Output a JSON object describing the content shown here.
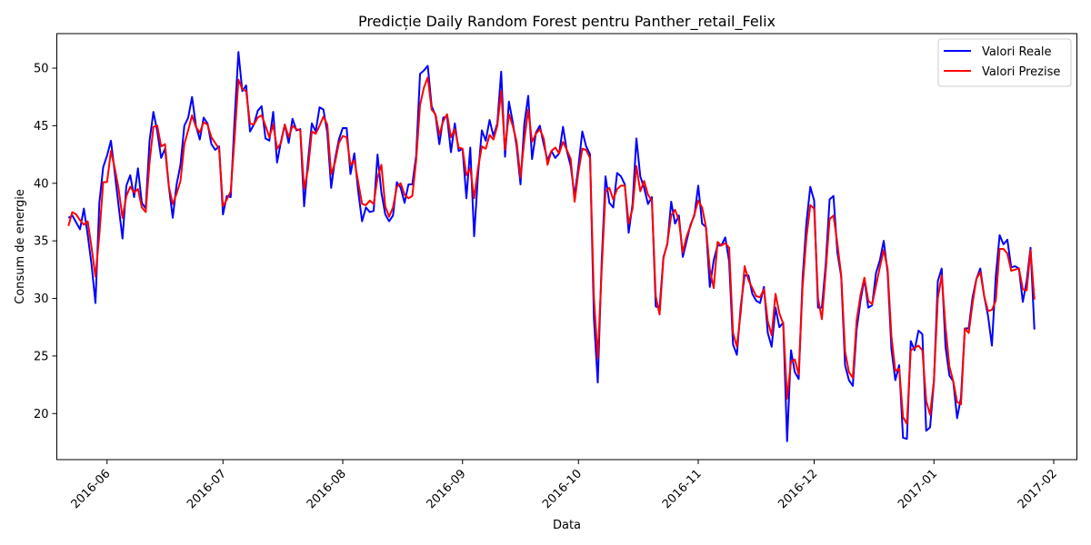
{
  "chart_data": {
    "type": "line",
    "title": "Predicție Daily Random Forest pentru Panther_retail_Felix",
    "xlabel": "Data",
    "ylabel": "Consum de energie",
    "xlim": [
      "2016-05-19",
      "2017-02-07"
    ],
    "ylim": [
      16,
      53
    ],
    "x_ticks": [
      "2016-06-01",
      "2016-07-01",
      "2016-08-01",
      "2016-09-01",
      "2016-10-01",
      "2016-11-01",
      "2016-12-01",
      "2017-01-01",
      "2017-02-01"
    ],
    "x_tick_labels": [
      "2016-06",
      "2016-07",
      "2016-08",
      "2016-09",
      "2016-10",
      "2016-11",
      "2016-12",
      "2017-01",
      "2017-02"
    ],
    "y_ticks": [
      20,
      25,
      30,
      35,
      40,
      45,
      50
    ],
    "grid": false,
    "legend_position": "top-right",
    "start_date": "2016-05-22",
    "series": [
      {
        "name": "Valori Reale",
        "color": "#0000ff",
        "values": [
          37.0,
          37.2,
          36.6,
          36.0,
          37.8,
          35.5,
          32.9,
          29.6,
          38.3,
          41.4,
          42.4,
          43.7,
          40.9,
          38.0,
          35.2,
          39.8,
          40.7,
          38.8,
          41.3,
          38.3,
          37.8,
          43.7,
          46.2,
          44.5,
          42.2,
          43.0,
          39.7,
          37.0,
          39.9,
          41.6,
          45.0,
          45.7,
          47.5,
          45.0,
          43.8,
          45.7,
          45.2,
          43.4,
          42.9,
          43.2,
          37.3,
          38.9,
          38.8,
          45.5,
          51.4,
          48.0,
          48.5,
          44.5,
          45.1,
          46.3,
          46.7,
          43.9,
          43.7,
          46.2,
          41.8,
          43.6,
          45.1,
          43.5,
          45.6,
          44.6,
          44.7,
          38.0,
          41.9,
          45.2,
          44.5,
          46.6,
          46.4,
          44.4,
          39.6,
          42.1,
          43.8,
          44.8,
          44.8,
          40.8,
          42.6,
          39.3,
          36.7,
          37.9,
          37.5,
          37.6,
          42.5,
          39.2,
          37.3,
          36.7,
          37.2,
          40.1,
          39.6,
          38.3,
          39.9,
          39.9,
          42.4,
          49.5,
          49.8,
          50.2,
          46.7,
          45.9,
          43.4,
          45.7,
          45.8,
          42.7,
          45.2,
          42.8,
          43.0,
          38.7,
          43.1,
          35.4,
          40.7,
          44.6,
          43.7,
          45.5,
          44.1,
          45.2,
          49.7,
          42.3,
          47.1,
          45.3,
          43.2,
          39.9,
          45.2,
          47.6,
          42.1,
          44.4,
          45.0,
          43.4,
          42.0,
          42.8,
          42.2,
          42.6,
          44.9,
          42.8,
          41.5,
          38.9,
          41.5,
          44.5,
          43.2,
          42.5,
          28.3,
          22.7,
          33.1,
          40.6,
          38.3,
          37.9,
          40.9,
          40.6,
          39.9,
          35.7,
          38.2,
          43.9,
          40.6,
          39.6,
          38.2,
          38.8,
          29.3,
          29.2,
          33.6,
          34.7,
          38.4,
          36.5,
          37.2,
          33.6,
          35.0,
          36.4,
          37.2,
          39.8,
          36.5,
          36.2,
          31.0,
          33.3,
          34.6,
          34.6,
          35.3,
          33.2,
          26.0,
          25.1,
          29.3,
          32.0,
          32.0,
          30.4,
          29.8,
          29.6,
          31.0,
          27.0,
          25.8,
          29.2,
          27.5,
          27.9,
          17.6,
          25.5,
          23.6,
          23.0,
          31.7,
          36.6,
          39.7,
          38.5,
          29.2,
          29.2,
          33.0,
          38.6,
          38.9,
          34.0,
          31.9,
          24.2,
          22.9,
          22.4,
          27.3,
          29.8,
          31.7,
          29.2,
          29.4,
          32.2,
          33.3,
          35.0,
          32.3,
          25.6,
          22.9,
          24.2,
          17.9,
          17.8,
          26.3,
          25.5,
          27.2,
          26.9,
          18.5,
          18.8,
          22.8,
          31.5,
          32.6,
          25.8,
          23.3,
          22.8,
          19.6,
          21.4,
          27.4,
          27.4,
          30.1,
          31.7,
          32.6,
          30.2,
          28.5,
          25.9,
          31.9,
          35.5,
          34.7,
          35.1,
          32.7,
          32.8,
          32.6,
          29.7,
          31.5,
          34.4,
          27.3
        ]
      },
      {
        "name": "Valori Prezise",
        "color": "#ff0000",
        "values": [
          36.3,
          37.5,
          37.3,
          36.8,
          36.4,
          36.7,
          34.4,
          31.9,
          35.5,
          40.1,
          40.1,
          42.8,
          41.3,
          39.5,
          37.0,
          38.9,
          39.7,
          39.2,
          39.5,
          37.9,
          37.5,
          41.8,
          44.9,
          45.0,
          43.2,
          43.4,
          39.7,
          38.2,
          39.1,
          40.2,
          43.4,
          44.6,
          45.9,
          44.9,
          44.4,
          45.3,
          45.1,
          44.0,
          43.5,
          43.0,
          38.0,
          38.6,
          39.3,
          43.9,
          49.0,
          48.2,
          48.0,
          45.2,
          45.1,
          45.7,
          45.9,
          45.0,
          44.0,
          45.1,
          43.0,
          43.5,
          45.1,
          44.0,
          45.0,
          44.7,
          44.6,
          39.5,
          41.2,
          44.5,
          44.3,
          45.0,
          45.8,
          45.1,
          40.8,
          41.8,
          43.5,
          44.1,
          44.0,
          41.6,
          42.0,
          40.1,
          38.2,
          38.1,
          38.5,
          38.2,
          40.5,
          41.6,
          38.0,
          37.1,
          37.9,
          39.7,
          40.0,
          39.0,
          38.7,
          38.9,
          42.0,
          46.8,
          48.3,
          49.2,
          46.4,
          46.0,
          44.2,
          45.4,
          46.0,
          44.0,
          44.7,
          43.1,
          43.0,
          40.7,
          41.3,
          38.7,
          41.3,
          43.2,
          43.0,
          44.2,
          43.8,
          45.0,
          48.0,
          42.9,
          46.0,
          45.0,
          43.6,
          40.5,
          43.8,
          46.4,
          43.6,
          44.3,
          44.7,
          43.9,
          41.6,
          42.8,
          43.1,
          42.6,
          43.6,
          42.9,
          42.1,
          38.4,
          41.0,
          43.0,
          42.9,
          42.2,
          30.1,
          24.8,
          32.4,
          39.3,
          39.6,
          38.6,
          39.5,
          39.8,
          39.8,
          36.5,
          37.8,
          41.5,
          39.3,
          40.2,
          39.0,
          38.5,
          30.2,
          28.6,
          33.5,
          34.8,
          37.2,
          37.7,
          36.8,
          34.0,
          35.4,
          36.3,
          37.3,
          38.5,
          37.9,
          36.2,
          32.5,
          30.9,
          34.9,
          34.6,
          34.8,
          34.4,
          27.0,
          25.8,
          28.8,
          32.8,
          31.6,
          30.9,
          30.2,
          30.1,
          30.8,
          28.0,
          26.8,
          30.4,
          28.7,
          27.8,
          21.3,
          24.5,
          24.7,
          23.4,
          31.0,
          35.3,
          38.1,
          37.8,
          30.0,
          28.2,
          32.4,
          36.9,
          37.2,
          34.8,
          32.0,
          25.4,
          23.6,
          23.1,
          28.1,
          30.3,
          31.8,
          29.8,
          29.5,
          31.1,
          32.7,
          34.2,
          32.6,
          26.7,
          23.7,
          23.9,
          19.7,
          19.1,
          25.5,
          25.7,
          25.9,
          25.5,
          21.1,
          19.9,
          22.9,
          30.0,
          32.0,
          27.5,
          24.1,
          22.8,
          21.0,
          20.8,
          27.4,
          27.0,
          29.6,
          31.7,
          32.3,
          30.2,
          28.9,
          29.0,
          29.8,
          34.3,
          34.3,
          33.9,
          32.4,
          32.5,
          32.6,
          30.8,
          30.7,
          34.2,
          29.9
        ]
      }
    ]
  }
}
